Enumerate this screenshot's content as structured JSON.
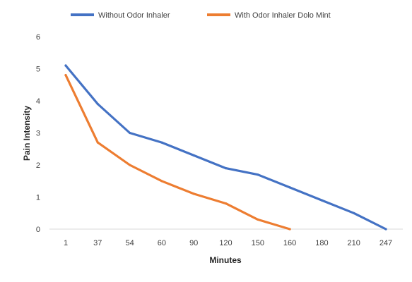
{
  "chart_data": {
    "type": "line",
    "title": "",
    "xlabel": "Minutes",
    "ylabel": "Pain Intensity",
    "categories": [
      "1",
      "37",
      "54",
      "60",
      "90",
      "120",
      "150",
      "160",
      "180",
      "210",
      "247"
    ],
    "ylim": [
      0,
      6
    ],
    "yticks": [
      0,
      1,
      2,
      3,
      4,
      5,
      6
    ],
    "grid": false,
    "legend_position": "top",
    "series": [
      {
        "name": "Without Odor Inhaler",
        "color": "#4472c4",
        "values": [
          5.1,
          3.9,
          3.0,
          2.7,
          2.3,
          1.9,
          1.7,
          1.3,
          0.9,
          0.5,
          0.0
        ]
      },
      {
        "name": "With Odor Inhaler Dolo Mint",
        "color": "#ed7d31",
        "values": [
          4.8,
          2.7,
          2.0,
          1.5,
          1.1,
          0.8,
          0.3,
          0.0,
          null,
          null,
          null
        ]
      }
    ]
  }
}
